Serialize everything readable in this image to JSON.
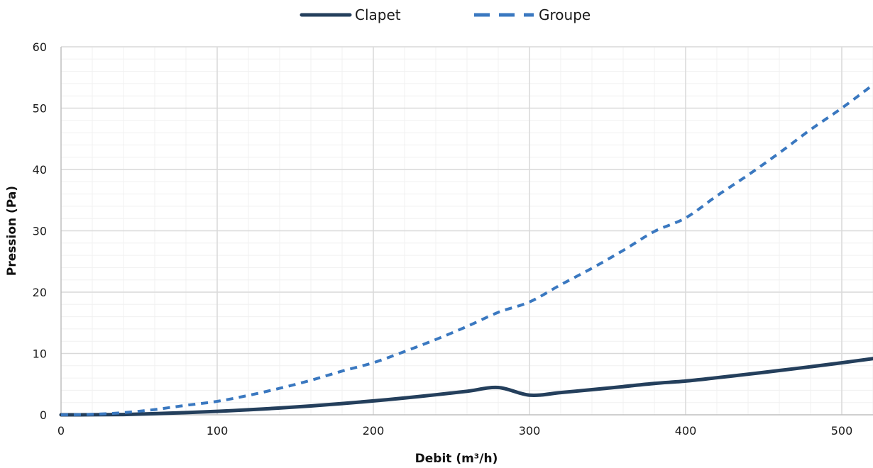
{
  "chart_data": {
    "type": "line",
    "title": "",
    "xlabel": "Debit (m³/h)",
    "ylabel": "Pression (Pa)",
    "xlim": [
      0,
      520
    ],
    "ylim": [
      0,
      60
    ],
    "x_ticks": [
      0,
      100,
      200,
      300,
      400,
      500
    ],
    "y_ticks": [
      0,
      10,
      20,
      30,
      40,
      50,
      60
    ],
    "grid": true,
    "minor_grid": true,
    "legend_position": "top-center",
    "x": [
      0,
      20,
      40,
      60,
      80,
      100,
      120,
      140,
      160,
      180,
      200,
      220,
      240,
      260,
      280,
      300,
      320,
      340,
      360,
      380,
      400,
      420,
      440,
      460,
      480,
      500,
      520
    ],
    "series": [
      {
        "name": "Clapet",
        "color": "#243f5c",
        "dash": "solid",
        "values": [
          0,
          0.01,
          0.05,
          0.19,
          0.36,
          0.57,
          0.82,
          1.11,
          1.45,
          1.84,
          2.27,
          2.75,
          3.27,
          3.84,
          4.45,
          3.2,
          3.63,
          4.1,
          4.6,
          5.12,
          5.5,
          6.05,
          6.62,
          7.22,
          7.84,
          8.48,
          9.17
        ]
      },
      {
        "name": "Groupe",
        "color": "#3a78c0",
        "dash": "dashed",
        "values": [
          0,
          0.08,
          0.36,
          0.86,
          1.55,
          2.2,
          3.17,
          4.32,
          5.63,
          7.13,
          8.5,
          10.32,
          12.28,
          14.41,
          16.71,
          18.4,
          21.2,
          23.9,
          26.8,
          29.9,
          32.1,
          35.7,
          39.1,
          42.7,
          46.5,
          50.0,
          53.8
        ]
      }
    ]
  }
}
